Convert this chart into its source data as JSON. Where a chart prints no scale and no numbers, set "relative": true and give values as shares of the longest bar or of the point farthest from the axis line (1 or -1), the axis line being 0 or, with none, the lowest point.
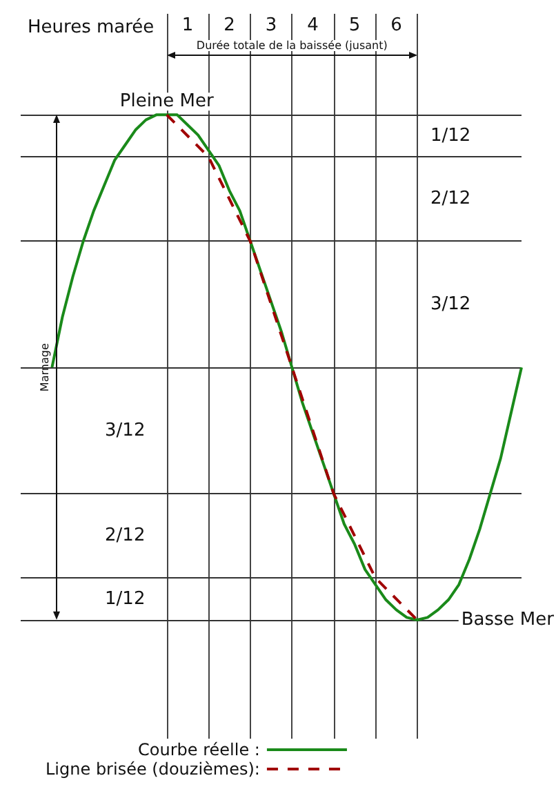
{
  "chart_data": {
    "type": "line",
    "relative": true,
    "xlabel": "Heures marée",
    "ylabel": "Marnage",
    "annotations": [
      "Durée totale de la baissée (jusant)",
      {
        "text": "Pleine Mer",
        "x": 0,
        "y": 1
      },
      {
        "text": "Basse Mer",
        "x": 6,
        "y": 0
      },
      "1/12",
      "2/12",
      "3/12",
      "3/12",
      "2/12",
      "1/12"
    ],
    "xlim": [
      -3.5,
      8.5
    ],
    "xticks": [
      {
        "value": 0,
        "label": null
      },
      {
        "value": 0.5,
        "label": "1"
      },
      {
        "value": 1,
        "label": null
      },
      {
        "value": 1.5,
        "label": "2"
      },
      {
        "value": 2,
        "label": null
      },
      {
        "value": 2.5,
        "label": "3"
      },
      {
        "value": 3,
        "label": null
      },
      {
        "value": 3.5,
        "label": "4"
      },
      {
        "value": 4,
        "label": null
      },
      {
        "value": 4.5,
        "label": "5"
      },
      {
        "value": 5,
        "label": null
      },
      {
        "value": 5.5,
        "label": "6"
      },
      {
        "value": 6,
        "label": null
      }
    ],
    "grid": "x",
    "tick_labels": "x",
    "legend": "bottom left",
    "ref_lines": [
      {
        "axis": "y",
        "value": 1
      },
      {
        "axis": "y",
        "value": 0.9167
      },
      {
        "axis": "y",
        "value": 0.75
      },
      {
        "axis": "y",
        "value": 0.5
      },
      {
        "axis": "y",
        "value": 0.25
      },
      {
        "axis": "y",
        "value": 0.0833
      },
      {
        "axis": "y",
        "value": 0
      }
    ],
    "series": [
      {
        "name": "Courbe réelle :",
        "color": "#1a8a1a",
        "x": [
          -2.75,
          -2.5,
          -2.25,
          -2,
          -1.75,
          -1.5,
          -1.25,
          -1,
          -0.75,
          -0.5,
          -0.25,
          0,
          0.25,
          0.5,
          0.75,
          1,
          1.25,
          1.5,
          1.75,
          2,
          2.25,
          2.5,
          2.75,
          3,
          3.25,
          3.5,
          3.75,
          4,
          4.25,
          4.5,
          4.75,
          5,
          5.25,
          5.5,
          5.75,
          6,
          6.25,
          6.5,
          6.75,
          7,
          7.25,
          7.5,
          7.75,
          8,
          8.25,
          8.5
        ],
        "values": [
          0.5,
          0.6,
          0.68,
          0.75,
          0.81,
          0.86,
          0.91,
          0.94,
          0.97,
          0.99,
          1,
          1,
          1,
          0.98,
          0.96,
          0.93,
          0.9,
          0.85,
          0.81,
          0.75,
          0.69,
          0.63,
          0.57,
          0.5,
          0.43,
          0.37,
          0.31,
          0.25,
          0.19,
          0.15,
          0.1,
          0.07,
          0.04,
          0.02,
          0.005,
          0,
          0.005,
          0.02,
          0.04,
          0.07,
          0.12,
          0.18,
          0.25,
          0.32,
          0.41,
          0.5
        ]
      },
      {
        "name": "Ligne brisée (douzièmes):",
        "color": "#a00000",
        "line_style": "dashed",
        "x": [
          0,
          1,
          2,
          3,
          4,
          5,
          6
        ],
        "values": [
          1,
          0.9167,
          0.75,
          0.5,
          0.25,
          0.0833,
          0
        ]
      }
    ]
  }
}
